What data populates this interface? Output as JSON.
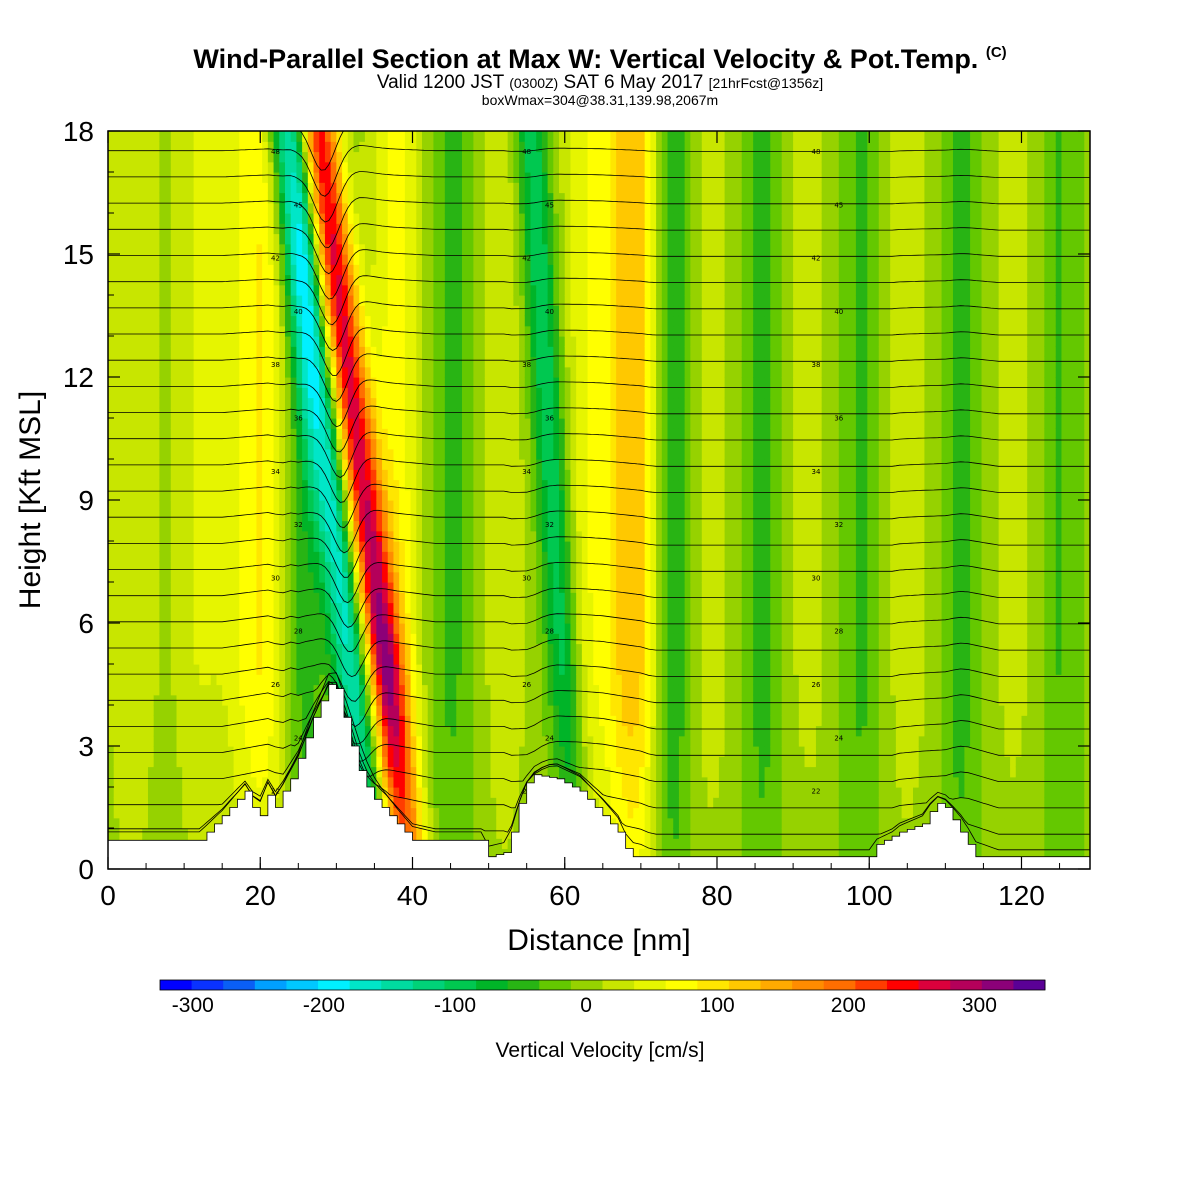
{
  "title": {
    "main": "Wind-Parallel Section at Max W: Vertical Velocity & Pot.Temp.",
    "copyright": "(C)",
    "valid_prefix": "Valid 1200 JST",
    "valid_utc": "(0300Z)",
    "valid_date": "SAT 6 May 2017",
    "forecast": "[21hrFcst@1356z]",
    "boxmax": "boxWmax=304@38.31,139.98,2067m"
  },
  "chart_data": {
    "type": "heatmap",
    "xlabel": "Distance [nm]",
    "ylabel": "Height [Kft MSL]",
    "xlim": [
      0,
      129
    ],
    "ylim": [
      0,
      18
    ],
    "xticks": [
      "0",
      "20",
      "40",
      "60",
      "80",
      "100",
      "120"
    ],
    "yticks": [
      "0",
      "3",
      "6",
      "9",
      "12",
      "15",
      "18"
    ],
    "colorbar": {
      "label": "Vertical Velocity [cm/s]",
      "ticks": [
        "-300",
        "-200",
        "-100",
        "0",
        "100",
        "200",
        "300"
      ],
      "range": [
        -325,
        350
      ],
      "step": 25,
      "colors": [
        "#0000ff",
        "#0a32ff",
        "#0a5ff5",
        "#00a0ff",
        "#00c8ff",
        "#00f0ff",
        "#00e6c8",
        "#00dca0",
        "#00d278",
        "#00c850",
        "#00b428",
        "#28b414",
        "#64c800",
        "#96d200",
        "#c8e600",
        "#e6f500",
        "#ffff00",
        "#ffe600",
        "#ffc800",
        "#ffaa00",
        "#ff8c00",
        "#ff6e00",
        "#ff3c00",
        "#ff0000",
        "#dc003c",
        "#b4005a",
        "#8c0078",
        "#5a0096"
      ]
    },
    "vertical_velocity_bands": [
      {
        "x": 3,
        "width": 4,
        "w": 40
      },
      {
        "x": 12,
        "width": 4,
        "w": 40
      },
      {
        "x": 20,
        "width": 5,
        "w": 95
      },
      {
        "x": 25.5,
        "width": 3,
        "w": -60
      },
      {
        "x": 29.5,
        "width": 3,
        "w": -185,
        "tilt": 6
      },
      {
        "x": 33.5,
        "width": 3,
        "w": 290,
        "tilt": 6
      },
      {
        "x": 38,
        "width": 4,
        "w": 80
      },
      {
        "x": 45,
        "width": 4,
        "w": -40
      },
      {
        "x": 52,
        "width": 4,
        "w": 35
      },
      {
        "x": 58.5,
        "width": 2.5,
        "w": -110,
        "tilt": 3
      },
      {
        "x": 63,
        "width": 4,
        "w": 60
      },
      {
        "x": 69,
        "width": 4,
        "w": 140
      },
      {
        "x": 74,
        "width": 3,
        "w": -70
      },
      {
        "x": 79,
        "width": 4,
        "w": 30
      },
      {
        "x": 86,
        "width": 3,
        "w": -45
      },
      {
        "x": 92,
        "width": 4,
        "w": 25
      },
      {
        "x": 99,
        "width": 3,
        "w": -40
      },
      {
        "x": 105,
        "width": 4,
        "w": 30
      },
      {
        "x": 112,
        "width": 3,
        "w": -45
      },
      {
        "x": 119,
        "width": 4,
        "w": 25
      },
      {
        "x": 125,
        "width": 3,
        "w": -35
      }
    ],
    "terrain_kft": [
      [
        0,
        0.7
      ],
      [
        12,
        0.7
      ],
      [
        13,
        0.9
      ],
      [
        14,
        1.1
      ],
      [
        15,
        1.3
      ],
      [
        16,
        1.5
      ],
      [
        17,
        1.7
      ],
      [
        18,
        1.9
      ],
      [
        19,
        1.5
      ],
      [
        20,
        1.3
      ],
      [
        21,
        1.8
      ],
      [
        22,
        1.5
      ],
      [
        23,
        1.9
      ],
      [
        24,
        2.2
      ],
      [
        25,
        2.7
      ],
      [
        26,
        3.2
      ],
      [
        27,
        3.7
      ],
      [
        28,
        4.1
      ],
      [
        29,
        4.5
      ],
      [
        30,
        4.4
      ],
      [
        31,
        3.7
      ],
      [
        32,
        3.0
      ],
      [
        33,
        2.4
      ],
      [
        34,
        2.0
      ],
      [
        35,
        1.7
      ],
      [
        36,
        1.5
      ],
      [
        37,
        1.3
      ],
      [
        38,
        1.1
      ],
      [
        39,
        0.9
      ],
      [
        40,
        0.7
      ],
      [
        49,
        0.7
      ],
      [
        50,
        0.3
      ],
      [
        52,
        0.4
      ],
      [
        53,
        0.9
      ],
      [
        54,
        1.6
      ],
      [
        55,
        2.1
      ],
      [
        56,
        2.3
      ],
      [
        59,
        2.2
      ],
      [
        60,
        2.1
      ],
      [
        61,
        2.0
      ],
      [
        62,
        1.9
      ],
      [
        63,
        1.7
      ],
      [
        64,
        1.5
      ],
      [
        65,
        1.3
      ],
      [
        66,
        1.1
      ],
      [
        67,
        0.9
      ],
      [
        68,
        0.5
      ],
      [
        69,
        0.3
      ],
      [
        100,
        0.3
      ],
      [
        101,
        0.6
      ],
      [
        104,
        0.9
      ],
      [
        107,
        1.1
      ],
      [
        108,
        1.4
      ],
      [
        109,
        1.6
      ],
      [
        110,
        1.5
      ],
      [
        111,
        1.2
      ],
      [
        112,
        0.9
      ],
      [
        113,
        0.6
      ],
      [
        114,
        0.3
      ],
      [
        129,
        0.3
      ]
    ],
    "theta_contours_K": {
      "min": 20,
      "max": 48,
      "interval": 1,
      "labels": [
        "48",
        "45",
        "42",
        "40",
        "38",
        "36",
        "34",
        "32",
        "30",
        "28",
        "26",
        "24",
        "22"
      ]
    }
  }
}
